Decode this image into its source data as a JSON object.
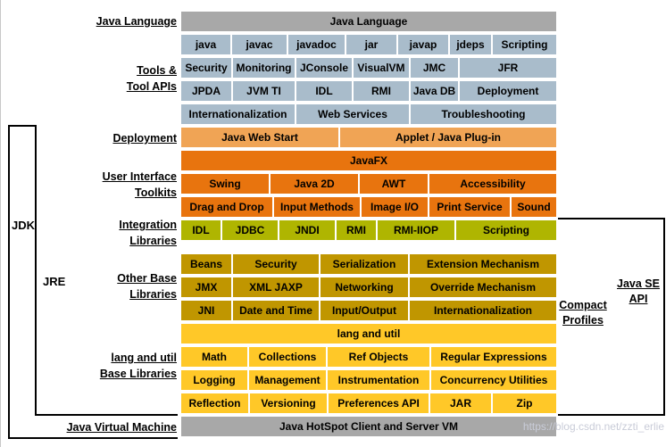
{
  "watermark": "https://blog.csdn.net/zzti_erlie",
  "colors": {
    "gray": "#a8a8a8",
    "tool": "#a9bccb",
    "light_orange": "#f0a455",
    "orange": "#e8740e",
    "olive": "#afb501",
    "dark_gold": "#c09600",
    "gold": "#ffc828"
  },
  "side_labels": {
    "jdk": "JDK",
    "jre": "JRE",
    "compact_profiles": [
      "Compact",
      "Profiles"
    ],
    "java_se_api": [
      "Java SE",
      "API"
    ]
  },
  "left_labels": [
    {
      "id": "java-language",
      "lines": [
        "Java Language"
      ]
    },
    {
      "id": "tools-tool-apis",
      "lines": [
        "Tools &",
        "Tool APIs"
      ]
    },
    {
      "id": "deployment",
      "lines": [
        "Deployment"
      ]
    },
    {
      "id": "user-interface-toolkits",
      "lines": [
        "User Interface",
        "Toolkits"
      ]
    },
    {
      "id": "integration-libraries",
      "lines": [
        "Integration",
        "Libraries"
      ]
    },
    {
      "id": "other-base-libraries",
      "lines": [
        "Other Base",
        "Libraries"
      ]
    },
    {
      "id": "lang-and-util-base-libraries",
      "lines": [
        "lang and util",
        "Base Libraries"
      ]
    },
    {
      "id": "java-virtual-machine",
      "lines": [
        "Java Virtual Machine"
      ]
    }
  ],
  "sections": {
    "java_language_bar": [
      "Java Language"
    ],
    "tools": [
      [
        "java",
        "javac",
        "javadoc",
        "jar",
        "javap",
        "jdeps",
        "Scripting"
      ],
      [
        "Security",
        "Monitoring",
        "JConsole",
        "VisualVM",
        "JMC",
        "JFR"
      ],
      [
        "JPDA",
        "JVM TI",
        "IDL",
        "RMI",
        "Java DB",
        "Deployment"
      ],
      [
        "Internationalization",
        "Web Services",
        "Troubleshooting"
      ]
    ],
    "deployment": [
      [
        "Java Web Start",
        "Applet / Java Plug-in"
      ]
    ],
    "ui_toolkits": [
      [
        "JavaFX"
      ],
      [
        "Swing",
        "Java 2D",
        "AWT",
        "Accessibility"
      ],
      [
        "Drag and Drop",
        "Input Methods",
        "Image I/O",
        "Print Service",
        "Sound"
      ]
    ],
    "integration": [
      [
        "IDL",
        "JDBC",
        "JNDI",
        "RMI",
        "RMI-IIOP",
        "Scripting"
      ]
    ],
    "other_base": [
      [
        "Beans",
        "Security",
        "Serialization",
        "Extension Mechanism"
      ],
      [
        "JMX",
        "XML JAXP",
        "Networking",
        "Override Mechanism"
      ],
      [
        "JNI",
        "Date and Time",
        "Input/Output",
        "Internationalization"
      ]
    ],
    "lang_util": [
      [
        "lang and util"
      ],
      [
        "Math",
        "Collections",
        "Ref Objects",
        "Regular Expressions"
      ],
      [
        "Logging",
        "Management",
        "Instrumentation",
        "Concurrency Utilities"
      ],
      [
        "Reflection",
        "Versioning",
        "Preferences API",
        "JAR",
        "Zip"
      ]
    ],
    "jvm": [
      [
        "Java HotSpot Client and Server VM"
      ]
    ]
  }
}
